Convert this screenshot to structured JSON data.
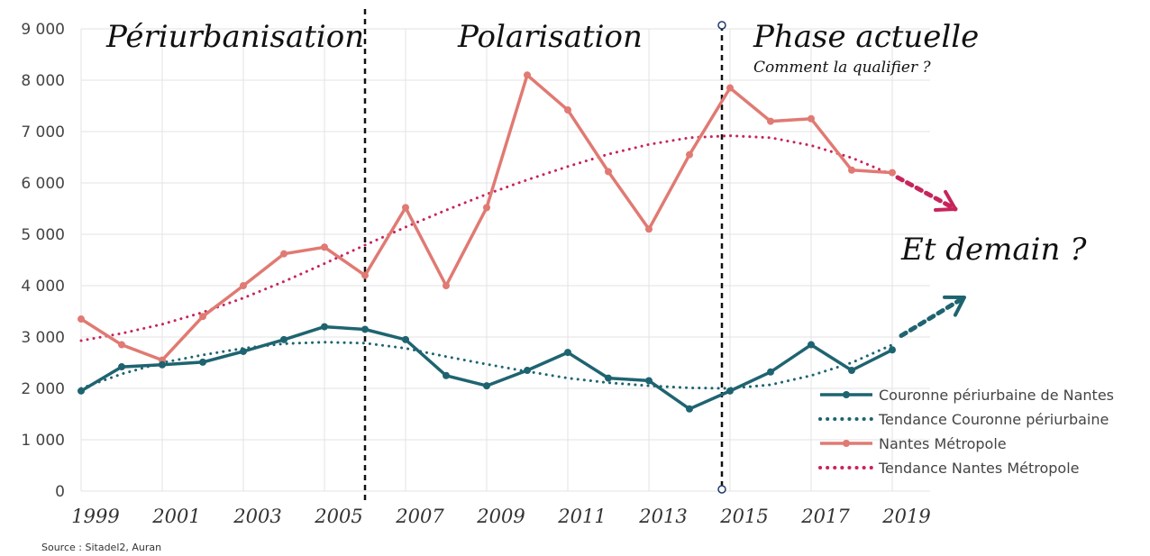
{
  "chart_data": {
    "type": "line",
    "x": [
      1999,
      2000,
      2001,
      2002,
      2003,
      2004,
      2005,
      2006,
      2007,
      2008,
      2009,
      2010,
      2011,
      2012,
      2013,
      2014,
      2015,
      2016,
      2017,
      2018,
      2019
    ],
    "x_tick_labels": [
      "1999",
      "2001",
      "2003",
      "2005",
      "2007",
      "2009",
      "2011",
      "2013",
      "2015",
      "2017",
      "2019"
    ],
    "y_tick_labels": [
      "0",
      "1 000",
      "2 000",
      "3 000",
      "4 000",
      "5 000",
      "6 000",
      "7 000",
      "8 000",
      "9 000"
    ],
    "ylim": [
      0,
      9000
    ],
    "grid": true,
    "legend_position": "bottom-right",
    "series": [
      {
        "name": "Couronne périurbaine de Nantes",
        "style": "solid",
        "color": "#1e6470",
        "values": [
          1950,
          2420,
          2460,
          2510,
          2720,
          2950,
          3200,
          3150,
          2950,
          2250,
          2050,
          2350,
          2700,
          2200,
          2150,
          1600,
          1950,
          2320,
          2850,
          2350,
          2750
        ]
      },
      {
        "name": "Tendance Couronne périurbaine",
        "style": "dotted",
        "color": "#1e6470",
        "values": [
          2000,
          2280,
          2500,
          2650,
          2780,
          2870,
          2900,
          2880,
          2780,
          2620,
          2470,
          2330,
          2200,
          2110,
          2050,
          2010,
          2000,
          2070,
          2250,
          2500,
          2850
        ]
      },
      {
        "name": "Nantes Métropole",
        "style": "solid",
        "color": "#e07a73",
        "values": [
          3350,
          2850,
          2550,
          3400,
          4000,
          4620,
          4750,
          4200,
          5520,
          4000,
          5520,
          8100,
          7420,
          6220,
          5100,
          6550,
          7850,
          7200,
          7250,
          6250,
          6200
        ]
      },
      {
        "name": "Tendance Nantes Métropole",
        "style": "dotted",
        "color": "#c7245c",
        "values": [
          2930,
          3070,
          3250,
          3480,
          3760,
          4080,
          4430,
          4790,
          5140,
          5470,
          5780,
          6060,
          6320,
          6560,
          6750,
          6880,
          6920,
          6880,
          6730,
          6490,
          6160
        ]
      }
    ],
    "annotations": {
      "phase1": "Périurbanisation",
      "phase2": "Polarisation",
      "phase3": "Phase actuelle",
      "phase3_sub": "Comment la qualifier ?",
      "future": "Et demain ?"
    },
    "source": "Source : Sitadel2, Auran"
  },
  "colors": {
    "couronne": "#1e6470",
    "metropole": "#e07a73",
    "tendance_metropole": "#c7245c",
    "grid": "#e3e3e3",
    "divider": "#111111"
  }
}
